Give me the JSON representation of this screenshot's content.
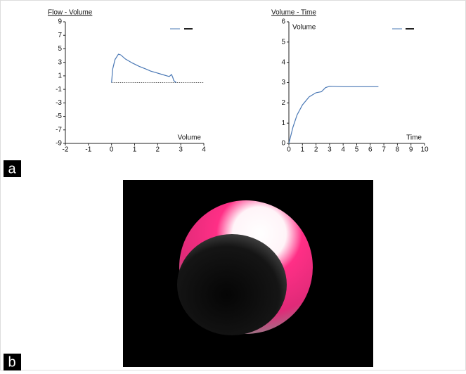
{
  "panel_labels": [
    "a",
    "b"
  ],
  "chart_data": [
    {
      "type": "line",
      "title": "Flow - Volume",
      "x_label": "Volume",
      "xlim": [
        -2,
        4
      ],
      "xticks": [
        -2,
        -1,
        0,
        1,
        2,
        3,
        4
      ],
      "ylim": [
        -9,
        9
      ],
      "yticks": [
        -9,
        -7,
        -5,
        -3,
        -1,
        1,
        3,
        5,
        7,
        9
      ],
      "reference_line": 0,
      "series": [
        {
          "color": "#4a78b5",
          "x": [
            0,
            0.05,
            0.15,
            0.3,
            0.4,
            0.6,
            0.9,
            1.2,
            1.5,
            1.7,
            1.9,
            2.2,
            2.4,
            2.5,
            2.6,
            2.65,
            2.7,
            2.8
          ],
          "values": [
            0,
            2,
            3.4,
            4.2,
            4.1,
            3.5,
            2.9,
            2.4,
            2.0,
            1.7,
            1.5,
            1.2,
            1.0,
            0.9,
            1.2,
            0.8,
            0.3,
            0
          ]
        }
      ]
    },
    {
      "type": "line",
      "title": "Volume - Time",
      "y_label": "Volume",
      "x_label": "Time",
      "xlim": [
        0,
        10
      ],
      "xticks": [
        0,
        1,
        2,
        3,
        4,
        5,
        6,
        7,
        8,
        9,
        10
      ],
      "ylim": [
        0,
        6
      ],
      "yticks": [
        0,
        1,
        2,
        3,
        4,
        5,
        6
      ],
      "series": [
        {
          "color": "#4a78b5",
          "x": [
            0,
            0.3,
            0.6,
            1,
            1.5,
            2,
            2.4,
            2.7,
            3,
            4,
            5,
            6.6
          ],
          "values": [
            0,
            0.8,
            1.4,
            1.9,
            2.3,
            2.5,
            2.55,
            2.75,
            2.82,
            2.8,
            2.8,
            2.8
          ]
        }
      ]
    }
  ]
}
